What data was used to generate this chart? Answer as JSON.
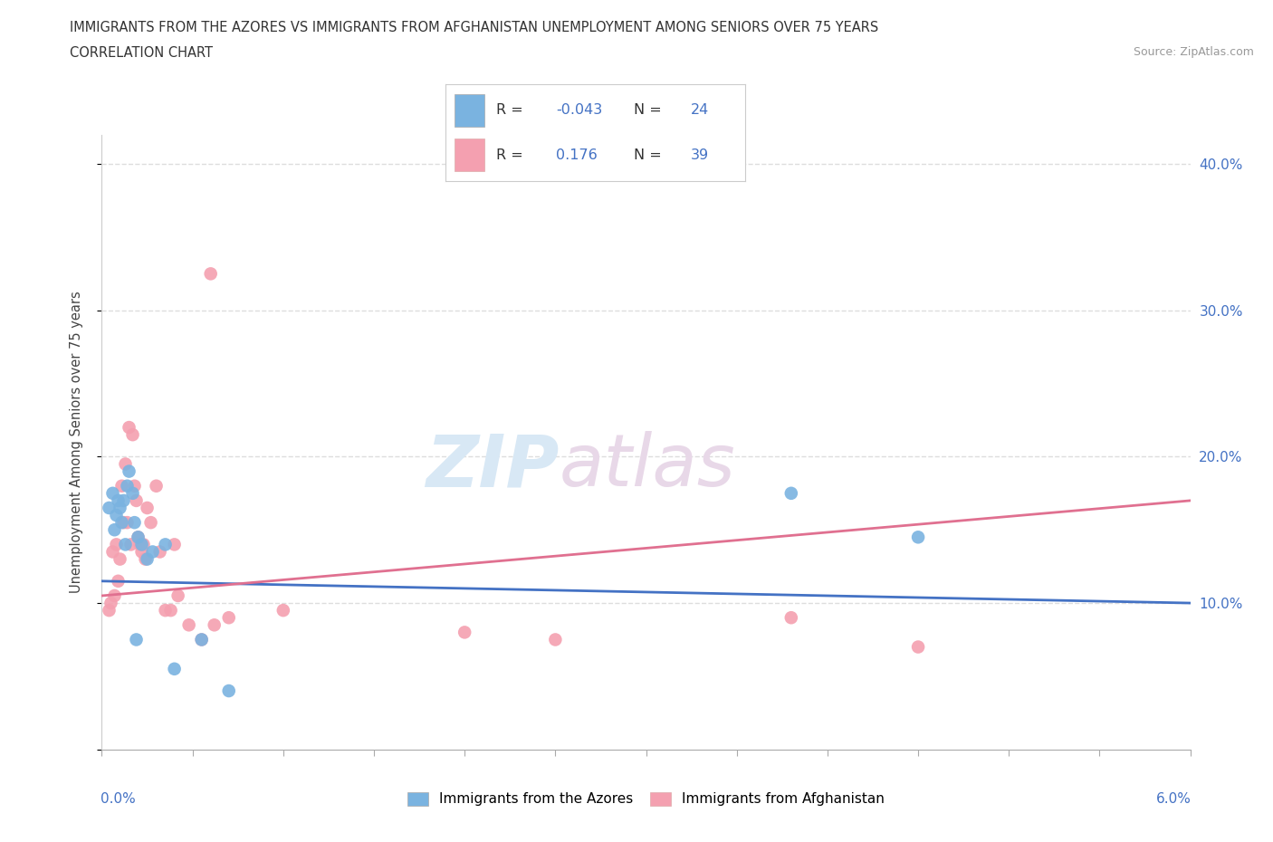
{
  "title_line1": "IMMIGRANTS FROM THE AZORES VS IMMIGRANTS FROM AFGHANISTAN UNEMPLOYMENT AMONG SENIORS OVER 75 YEARS",
  "title_line2": "CORRELATION CHART",
  "source": "Source: ZipAtlas.com",
  "ylabel": "Unemployment Among Seniors over 75 years",
  "xlim": [
    0.0,
    6.0
  ],
  "ylim": [
    0.0,
    42.0
  ],
  "grid_color": "#dddddd",
  "watermark_zip": "ZIP",
  "watermark_atlas": "atlas",
  "azores_color": "#7ab3e0",
  "afghanistan_color": "#f4a0b0",
  "azores_line_color": "#4472c4",
  "afghanistan_line_color": "#e07090",
  "azores_R": -0.043,
  "azores_N": 24,
  "afghanistan_R": 0.176,
  "afghanistan_N": 39,
  "legend_R_color": "#4472c4",
  "azores_x": [
    0.04,
    0.06,
    0.07,
    0.08,
    0.09,
    0.1,
    0.11,
    0.12,
    0.13,
    0.14,
    0.15,
    0.17,
    0.18,
    0.2,
    0.22,
    0.25,
    0.28,
    0.35,
    0.4,
    0.55,
    0.7,
    3.8,
    4.5,
    0.19
  ],
  "azores_y": [
    16.5,
    17.5,
    15.0,
    16.0,
    17.0,
    16.5,
    15.5,
    17.0,
    14.0,
    18.0,
    19.0,
    17.5,
    15.5,
    14.5,
    14.0,
    13.0,
    13.5,
    14.0,
    5.5,
    7.5,
    4.0,
    17.5,
    14.5,
    7.5
  ],
  "afghanistan_x": [
    0.04,
    0.05,
    0.06,
    0.07,
    0.08,
    0.09,
    0.1,
    0.11,
    0.12,
    0.13,
    0.14,
    0.15,
    0.16,
    0.17,
    0.18,
    0.19,
    0.2,
    0.21,
    0.22,
    0.23,
    0.24,
    0.25,
    0.27,
    0.3,
    0.32,
    0.35,
    0.38,
    0.4,
    0.42,
    0.48,
    0.55,
    0.62,
    0.7,
    1.0,
    2.0,
    2.5,
    3.8,
    4.5,
    0.6
  ],
  "afghanistan_y": [
    9.5,
    10.0,
    13.5,
    10.5,
    14.0,
    11.5,
    13.0,
    18.0,
    15.5,
    19.5,
    15.5,
    22.0,
    14.0,
    21.5,
    18.0,
    17.0,
    14.5,
    14.0,
    13.5,
    14.0,
    13.0,
    16.5,
    15.5,
    18.0,
    13.5,
    9.5,
    9.5,
    14.0,
    10.5,
    8.5,
    7.5,
    8.5,
    9.0,
    9.5,
    8.0,
    7.5,
    9.0,
    7.0,
    32.5
  ]
}
